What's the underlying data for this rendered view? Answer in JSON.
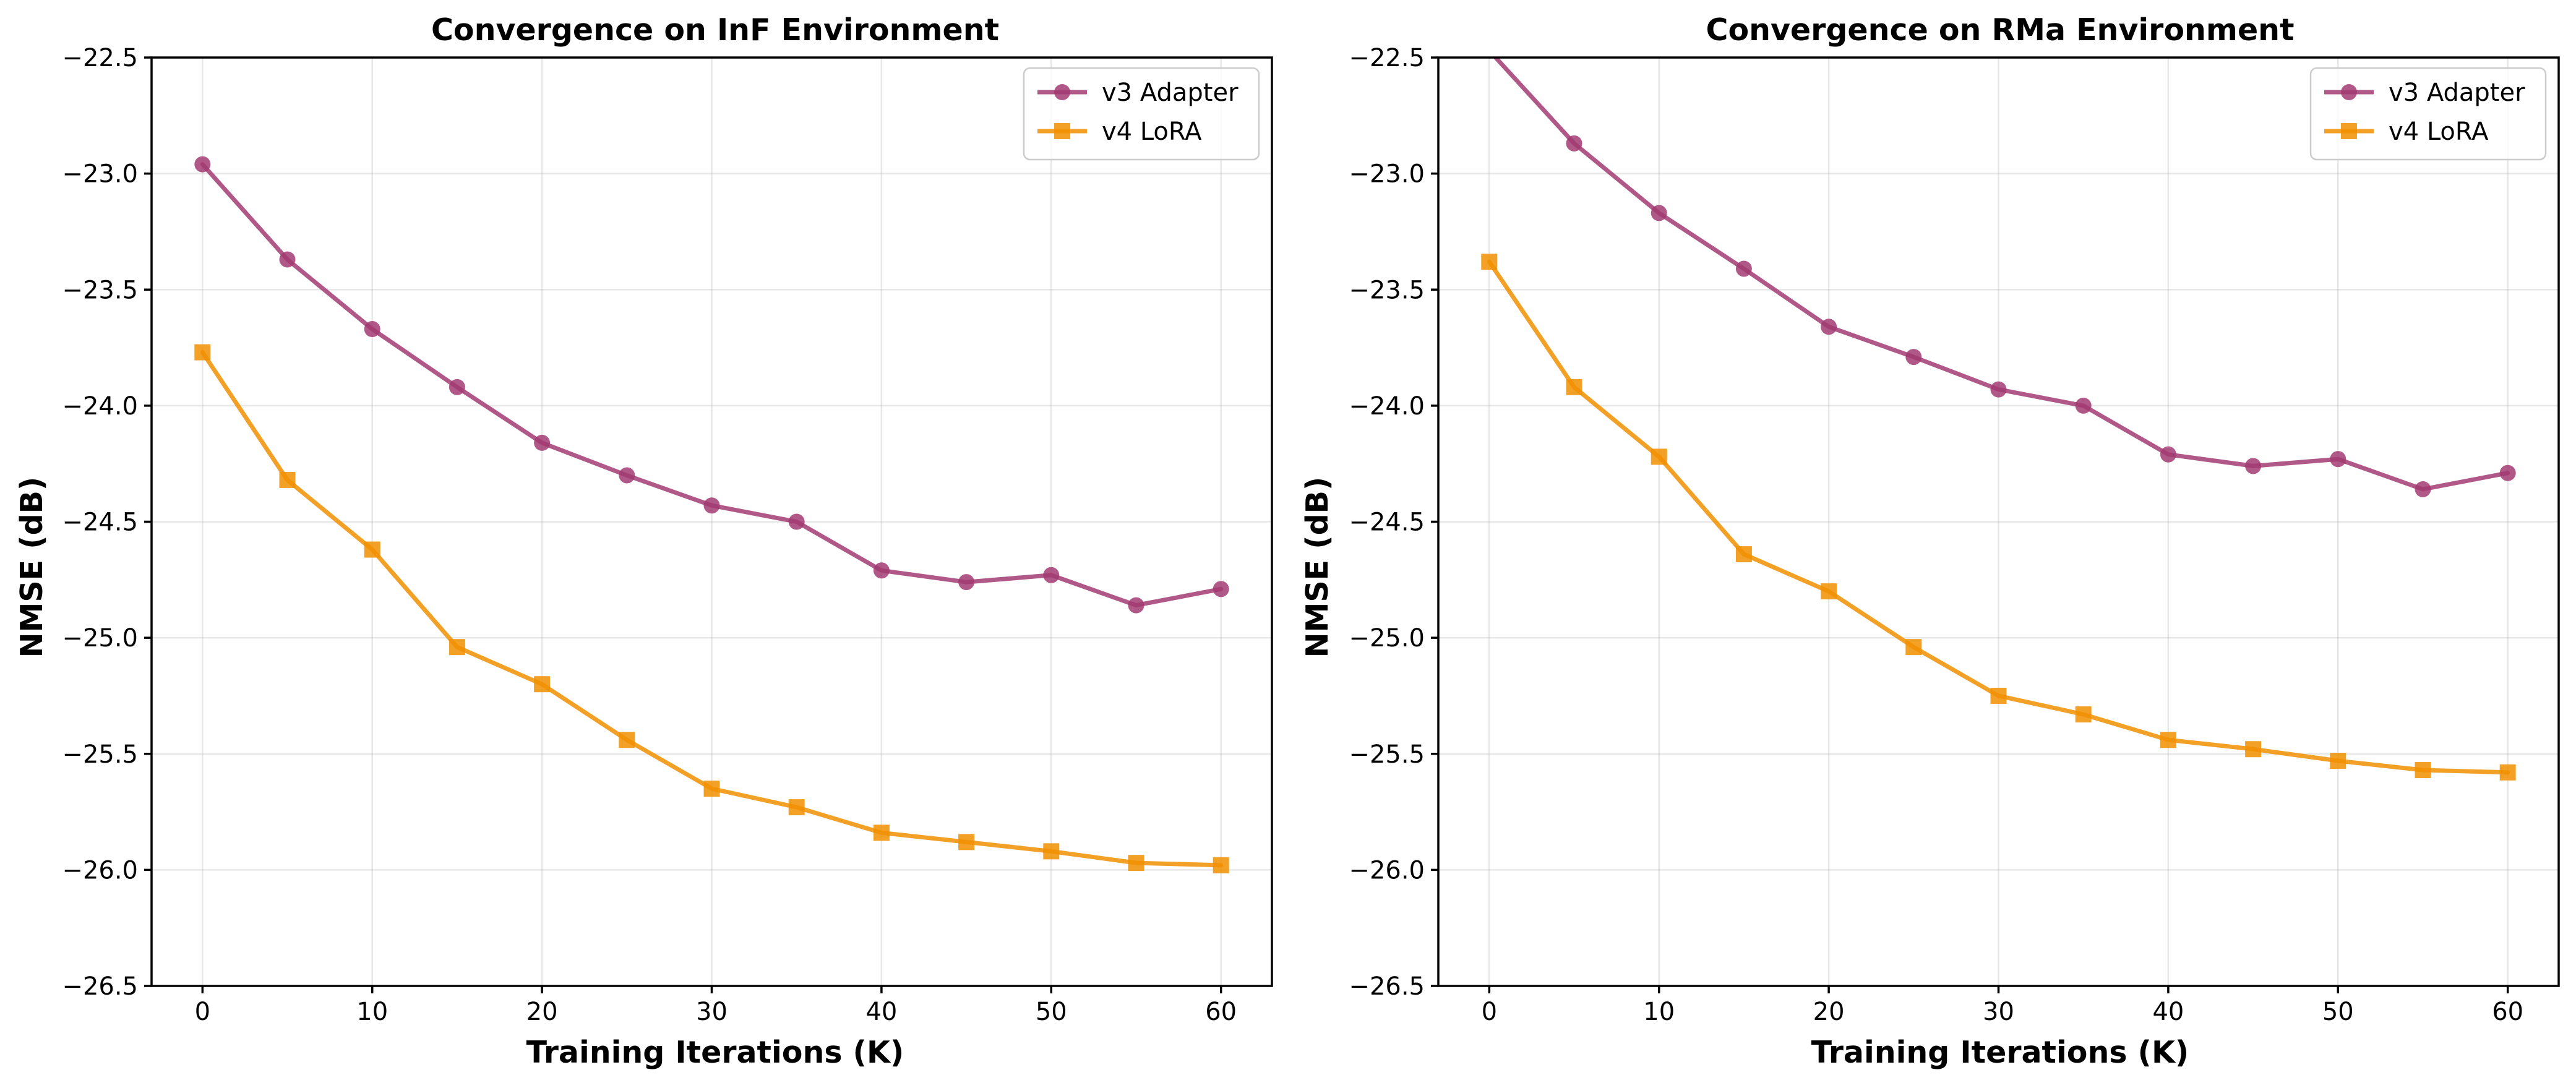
{
  "chart_data": [
    {
      "type": "line",
      "title": "Convergence on InF Environment",
      "xlabel": "Training Iterations (K)",
      "ylabel": "NMSE (dB)",
      "x": [
        0,
        5,
        10,
        15,
        20,
        25,
        30,
        35,
        40,
        45,
        50,
        55,
        60
      ],
      "xlim": [
        -3,
        63
      ],
      "ylim": [
        -26.5,
        -22.5
      ],
      "xticks": [
        0,
        10,
        20,
        30,
        40,
        50,
        60
      ],
      "yticks": [
        -26.5,
        -26.0,
        -25.5,
        -25.0,
        -24.5,
        -24.0,
        -23.5,
        -23.0,
        -22.5
      ],
      "grid": true,
      "legend": "top-right",
      "series": [
        {
          "name": "v3 Adapter",
          "color": "#a23b72",
          "marker": "circle",
          "values": [
            -22.96,
            -23.37,
            -23.67,
            -23.92,
            -24.16,
            -24.3,
            -24.43,
            -24.5,
            -24.71,
            -24.76,
            -24.73,
            -24.86,
            -24.79
          ]
        },
        {
          "name": "v4 LoRA",
          "color": "#f18f01",
          "marker": "square",
          "values": [
            -23.77,
            -24.32,
            -24.62,
            -25.04,
            -25.2,
            -25.44,
            -25.65,
            -25.73,
            -25.84,
            -25.88,
            -25.92,
            -25.97,
            -25.98
          ]
        }
      ]
    },
    {
      "type": "line",
      "title": "Convergence on RMa Environment",
      "xlabel": "Training Iterations (K)",
      "ylabel": "NMSE (dB)",
      "x": [
        0,
        5,
        10,
        15,
        20,
        25,
        30,
        35,
        40,
        45,
        50,
        55,
        60
      ],
      "xlim": [
        -3,
        63
      ],
      "ylim": [
        -26.5,
        -22.5
      ],
      "xticks": [
        0,
        10,
        20,
        30,
        40,
        50,
        60
      ],
      "yticks": [
        -26.5,
        -26.0,
        -25.5,
        -25.0,
        -24.5,
        -24.0,
        -23.5,
        -23.0,
        -22.5
      ],
      "grid": true,
      "legend": "top-right",
      "series": [
        {
          "name": "v3 Adapter",
          "color": "#a23b72",
          "marker": "circle",
          "values": [
            -22.47,
            -22.87,
            -23.17,
            -23.41,
            -23.66,
            -23.79,
            -23.93,
            -24.0,
            -24.21,
            -24.26,
            -24.23,
            -24.36,
            -24.29
          ]
        },
        {
          "name": "v4 LoRA",
          "color": "#f18f01",
          "marker": "square",
          "values": [
            -23.38,
            -23.92,
            -24.22,
            -24.64,
            -24.8,
            -25.04,
            -25.25,
            -25.33,
            -25.44,
            -25.48,
            -25.53,
            -25.57,
            -25.58
          ]
        }
      ]
    }
  ]
}
